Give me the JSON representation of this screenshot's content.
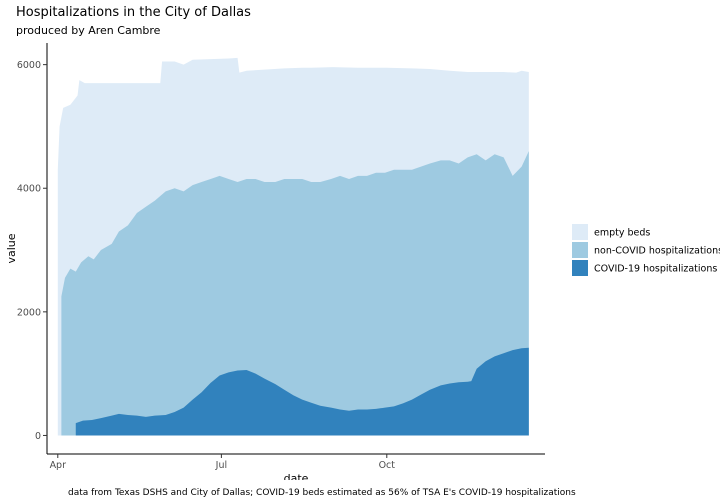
{
  "chart_data": {
    "type": "area",
    "title": "Hospitalizations in the City of Dallas",
    "subtitle": "produced by Aren Cambre",
    "caption": "data from Texas DSHS and City of Dallas; COVID-19 beds estimated as 56% of TSA E's COVID-19 hospitalizations",
    "xlabel": "date",
    "ylabel": "value",
    "xlim": [
      "2020-03-26",
      "2020-12-28"
    ],
    "ylim": [
      -300,
      6350
    ],
    "x_ticks": [
      {
        "date": "2020-04-01",
        "label": "Apr"
      },
      {
        "date": "2020-07-01",
        "label": "Jul"
      },
      {
        "date": "2020-10-01",
        "label": "Oct"
      }
    ],
    "y_ticks": [
      0,
      2000,
      4000,
      6000
    ],
    "grid": false,
    "legend_position": "right",
    "stacked": true,
    "series": [
      {
        "name": "COVID-19 hospitalizations",
        "color": "#3182bd",
        "values": [
          [
            "2020-04-11",
            0
          ],
          [
            "2020-04-11",
            200
          ],
          [
            "2020-04-15",
            240
          ],
          [
            "2020-04-20",
            250
          ],
          [
            "2020-04-25",
            280
          ],
          [
            "2020-05-01",
            320
          ],
          [
            "2020-05-05",
            350
          ],
          [
            "2020-05-10",
            330
          ],
          [
            "2020-05-15",
            320
          ],
          [
            "2020-05-20",
            300
          ],
          [
            "2020-05-25",
            320
          ],
          [
            "2020-05-31",
            330
          ],
          [
            "2020-06-05",
            380
          ],
          [
            "2020-06-10",
            450
          ],
          [
            "2020-06-15",
            580
          ],
          [
            "2020-06-20",
            700
          ],
          [
            "2020-06-25",
            850
          ],
          [
            "2020-06-30",
            970
          ],
          [
            "2020-07-05",
            1020
          ],
          [
            "2020-07-10",
            1050
          ],
          [
            "2020-07-15",
            1060
          ],
          [
            "2020-07-20",
            1000
          ],
          [
            "2020-07-25",
            920
          ],
          [
            "2020-07-31",
            830
          ],
          [
            "2020-08-05",
            740
          ],
          [
            "2020-08-10",
            650
          ],
          [
            "2020-08-15",
            580
          ],
          [
            "2020-08-20",
            530
          ],
          [
            "2020-08-25",
            480
          ],
          [
            "2020-08-31",
            450
          ],
          [
            "2020-09-05",
            420
          ],
          [
            "2020-09-10",
            400
          ],
          [
            "2020-09-15",
            420
          ],
          [
            "2020-09-20",
            420
          ],
          [
            "2020-09-25",
            430
          ],
          [
            "2020-09-30",
            450
          ],
          [
            "2020-10-05",
            470
          ],
          [
            "2020-10-10",
            520
          ],
          [
            "2020-10-15",
            580
          ],
          [
            "2020-10-20",
            660
          ],
          [
            "2020-10-25",
            740
          ],
          [
            "2020-10-31",
            810
          ],
          [
            "2020-11-05",
            840
          ],
          [
            "2020-11-10",
            860
          ],
          [
            "2020-11-15",
            870
          ],
          [
            "2020-11-17",
            880
          ],
          [
            "2020-11-20",
            1080
          ],
          [
            "2020-11-25",
            1200
          ],
          [
            "2020-11-30",
            1280
          ],
          [
            "2020-12-05",
            1330
          ],
          [
            "2020-12-10",
            1380
          ],
          [
            "2020-12-15",
            1410
          ],
          [
            "2020-12-19",
            1420
          ]
        ]
      },
      {
        "name": "non-COVID hospitalizations",
        "color": "#9ecae1",
        "values": [
          [
            "2020-04-03",
            2250
          ],
          [
            "2020-04-05",
            2550
          ],
          [
            "2020-04-08",
            2700
          ],
          [
            "2020-04-11",
            2650
          ],
          [
            "2020-04-14",
            2800
          ],
          [
            "2020-04-18",
            2900
          ],
          [
            "2020-04-21",
            2850
          ],
          [
            "2020-04-25",
            3000
          ],
          [
            "2020-05-01",
            3100
          ],
          [
            "2020-05-05",
            3300
          ],
          [
            "2020-05-10",
            3400
          ],
          [
            "2020-05-15",
            3600
          ],
          [
            "2020-05-20",
            3700
          ],
          [
            "2020-05-25",
            3800
          ],
          [
            "2020-05-31",
            3950
          ],
          [
            "2020-06-05",
            4000
          ],
          [
            "2020-06-10",
            3950
          ],
          [
            "2020-06-15",
            4050
          ],
          [
            "2020-06-20",
            4100
          ],
          [
            "2020-06-25",
            4150
          ],
          [
            "2020-06-30",
            4200
          ],
          [
            "2020-07-05",
            4150
          ],
          [
            "2020-07-10",
            4100
          ],
          [
            "2020-07-15",
            4150
          ],
          [
            "2020-07-20",
            4150
          ],
          [
            "2020-07-25",
            4100
          ],
          [
            "2020-07-31",
            4100
          ],
          [
            "2020-08-05",
            4150
          ],
          [
            "2020-08-10",
            4150
          ],
          [
            "2020-08-15",
            4150
          ],
          [
            "2020-08-20",
            4100
          ],
          [
            "2020-08-25",
            4100
          ],
          [
            "2020-08-31",
            4150
          ],
          [
            "2020-09-05",
            4200
          ],
          [
            "2020-09-10",
            4150
          ],
          [
            "2020-09-15",
            4200
          ],
          [
            "2020-09-20",
            4200
          ],
          [
            "2020-09-25",
            4250
          ],
          [
            "2020-09-30",
            4250
          ],
          [
            "2020-10-05",
            4300
          ],
          [
            "2020-10-10",
            4300
          ],
          [
            "2020-10-15",
            4300
          ],
          [
            "2020-10-20",
            4350
          ],
          [
            "2020-10-25",
            4400
          ],
          [
            "2020-10-31",
            4450
          ],
          [
            "2020-11-05",
            4450
          ],
          [
            "2020-11-10",
            4400
          ],
          [
            "2020-11-15",
            4500
          ],
          [
            "2020-11-20",
            4550
          ],
          [
            "2020-11-25",
            4450
          ],
          [
            "2020-11-30",
            4550
          ],
          [
            "2020-12-05",
            4500
          ],
          [
            "2020-12-10",
            4200
          ],
          [
            "2020-12-15",
            4350
          ],
          [
            "2020-12-19",
            4600
          ]
        ]
      },
      {
        "name": "empty beds",
        "color": "#deebf7",
        "values": [
          [
            "2020-04-01",
            4300
          ],
          [
            "2020-04-02",
            5000
          ],
          [
            "2020-04-04",
            5300
          ],
          [
            "2020-04-08",
            5350
          ],
          [
            "2020-04-12",
            5500
          ],
          [
            "2020-04-13",
            5750
          ],
          [
            "2020-04-16",
            5700
          ],
          [
            "2020-04-20",
            5700
          ],
          [
            "2020-05-01",
            5700
          ],
          [
            "2020-05-15",
            5700
          ],
          [
            "2020-05-28",
            5700
          ],
          [
            "2020-05-29",
            6050
          ],
          [
            "2020-06-05",
            6050
          ],
          [
            "2020-06-10",
            6000
          ],
          [
            "2020-06-15",
            6080
          ],
          [
            "2020-06-25",
            6090
          ],
          [
            "2020-07-05",
            6100
          ],
          [
            "2020-07-10",
            6110
          ],
          [
            "2020-07-11",
            5870
          ],
          [
            "2020-07-15",
            5900
          ],
          [
            "2020-07-25",
            5920
          ],
          [
            "2020-08-05",
            5940
          ],
          [
            "2020-08-15",
            5950
          ],
          [
            "2020-08-20",
            5950
          ],
          [
            "2020-09-01",
            5960
          ],
          [
            "2020-09-15",
            5950
          ],
          [
            "2020-10-01",
            5950
          ],
          [
            "2020-10-15",
            5940
          ],
          [
            "2020-10-25",
            5930
          ],
          [
            "2020-11-05",
            5900
          ],
          [
            "2020-11-15",
            5880
          ],
          [
            "2020-11-25",
            5880
          ],
          [
            "2020-12-05",
            5880
          ],
          [
            "2020-12-12",
            5870
          ],
          [
            "2020-12-15",
            5900
          ],
          [
            "2020-12-19",
            5880
          ]
        ]
      }
    ]
  }
}
